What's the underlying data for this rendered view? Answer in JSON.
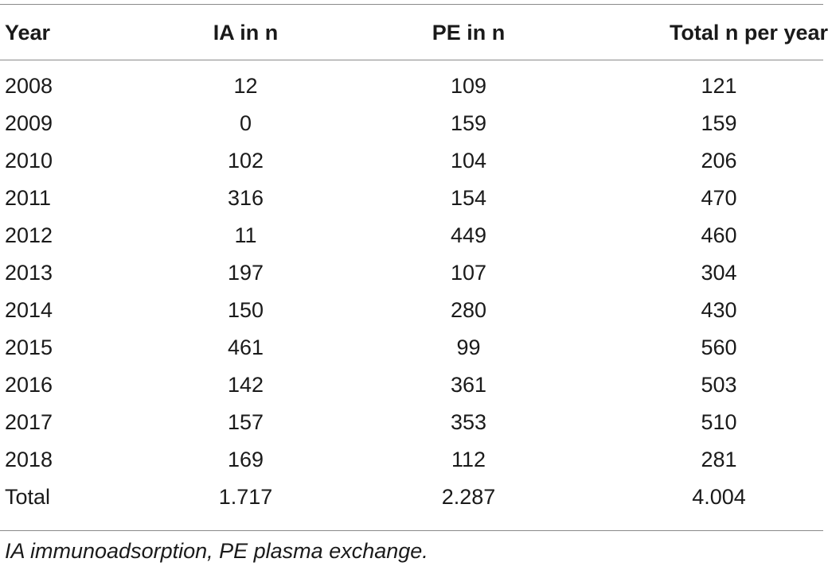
{
  "table": {
    "headers": [
      "Year",
      "IA in n",
      "PE in n",
      "Total n per year"
    ],
    "rows": [
      [
        "2008",
        "12",
        "109",
        "121"
      ],
      [
        "2009",
        "0",
        "159",
        "159"
      ],
      [
        "2010",
        "102",
        "104",
        "206"
      ],
      [
        "2011",
        "316",
        "154",
        "470"
      ],
      [
        "2012",
        "11",
        "449",
        "460"
      ],
      [
        "2013",
        "197",
        "107",
        "304"
      ],
      [
        "2014",
        "150",
        "280",
        "430"
      ],
      [
        "2015",
        "461",
        "99",
        "560"
      ],
      [
        "2016",
        "142",
        "361",
        "503"
      ],
      [
        "2017",
        "157",
        "353",
        "510"
      ],
      [
        "2018",
        "169",
        "112",
        "281"
      ],
      [
        "Total",
        "1.717",
        "2.287",
        "4.004"
      ]
    ]
  },
  "footnote": "IA immunoadsorption, PE plasma exchange."
}
